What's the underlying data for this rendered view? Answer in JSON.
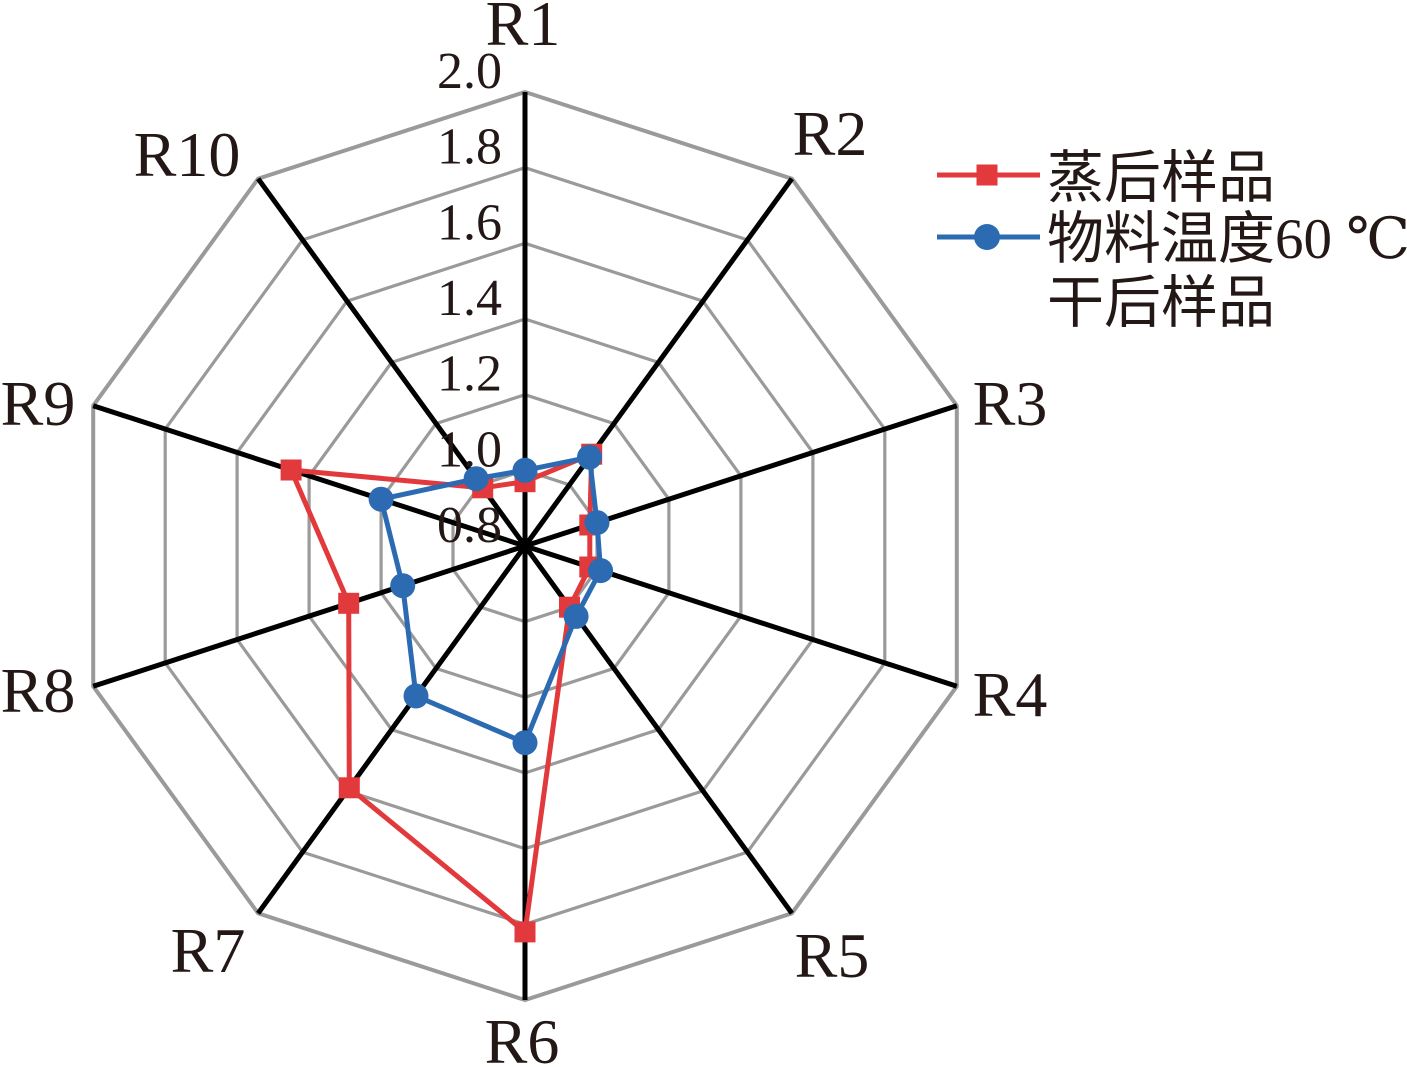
{
  "chart_data": {
    "type": "radar",
    "title": "",
    "categories": [
      "R1",
      "R2",
      "R3",
      "R4",
      "R5",
      "R6",
      "R7",
      "R8",
      "R9",
      "R10"
    ],
    "radial_axis": {
      "min": 0.8,
      "max": 2.0,
      "tick_step": 0.2,
      "tick_values": [
        2.0,
        1.8,
        1.6,
        1.4,
        1.2,
        1.0,
        0.8
      ],
      "tick_labels": [
        "2.0",
        "1.8",
        "1.6",
        "1.4",
        "1.2",
        "1.0",
        "0.8"
      ]
    },
    "grid": {
      "shape": "polygon",
      "sides": 10,
      "ring_values": [
        1.0,
        1.2,
        1.4,
        1.6,
        1.8,
        2.0
      ],
      "grid_color": "#9a9a9a",
      "axis_color": "#000000"
    },
    "legend_position": "top-right",
    "text_color": "#231815",
    "series": [
      {
        "name": "蒸后样品",
        "label_lines": [
          "蒸后样品"
        ],
        "marker": "square",
        "color": "#e23a3c",
        "values": [
          0.97,
          1.1,
          0.98,
          0.98,
          1.0,
          1.82,
          1.59,
          1.29,
          1.45,
          0.99
        ]
      },
      {
        "name": "物料温度60 ℃干后样品",
        "label_lines": [
          "物料温度60 ℃",
          "干后样品"
        ],
        "marker": "circle",
        "color": "#2c6bb2",
        "values": [
          1.0,
          1.09,
          1.0,
          1.01,
          1.03,
          1.32,
          1.29,
          1.14,
          1.2,
          1.02
        ]
      }
    ]
  }
}
